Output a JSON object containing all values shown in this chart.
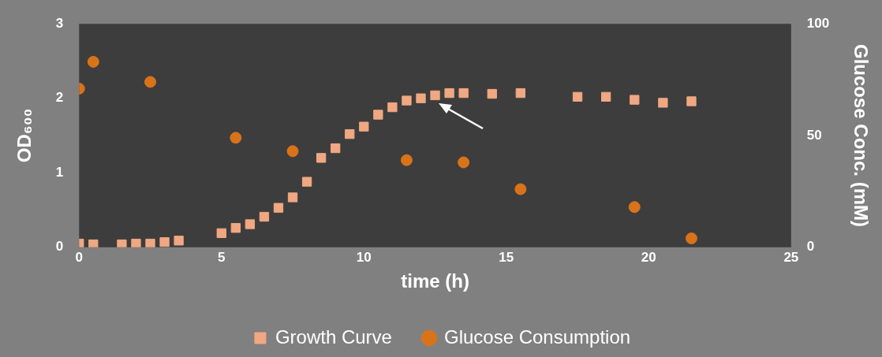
{
  "chart_data": {
    "type": "scatter",
    "xlabel": "time (h)",
    "ylabel": "OD₆₀₀",
    "y2label": "Glucose Conc. (mM)",
    "xlim": [
      0,
      25
    ],
    "xticks": [
      0,
      5,
      10,
      15,
      20,
      25
    ],
    "ylim": [
      0,
      3
    ],
    "yticks": [
      0,
      1,
      2,
      3
    ],
    "y2lim": [
      0,
      100
    ],
    "y2ticks": [
      0,
      50,
      100
    ],
    "grid": false,
    "legend": "bottom",
    "series": [
      {
        "name": "Growth Curve",
        "color": "#f0a882",
        "marker": "square",
        "x": [
          0,
          0.5,
          1.5,
          2,
          2.5,
          3,
          3.5,
          5,
          5.5,
          6,
          6.5,
          7,
          7.5,
          8,
          8.5,
          9,
          9.5,
          10,
          10.5,
          11,
          11.5,
          12,
          12.5,
          13,
          13.5,
          14.5,
          15.5,
          17.5,
          18.5,
          19.5,
          20.5,
          21.5
        ],
        "values": [
          0.05,
          0.04,
          0.04,
          0.05,
          0.05,
          0.07,
          0.09,
          0.19,
          0.26,
          0.31,
          0.41,
          0.53,
          0.67,
          0.88,
          1.2,
          1.33,
          1.52,
          1.62,
          1.78,
          1.88,
          1.97,
          2.0,
          2.04,
          2.07,
          2.07,
          2.06,
          2.07,
          2.02,
          2.02,
          1.98,
          1.94,
          1.96
        ]
      },
      {
        "name": "Glucose Consumption",
        "color": "#d9731a",
        "marker": "circle",
        "axis": "y2",
        "x": [
          0,
          0.5,
          2.5,
          5.5,
          7.5,
          11.5,
          13.5,
          15.5,
          19.5,
          21.5
        ],
        "values": [
          71,
          83,
          74,
          49,
          43,
          39,
          38,
          26,
          18,
          4
        ]
      }
    ]
  }
}
